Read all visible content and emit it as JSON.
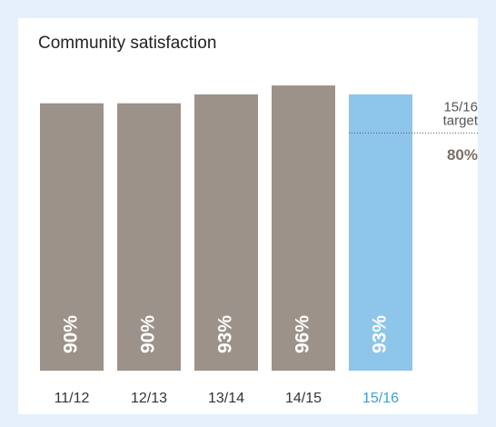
{
  "chart_data": {
    "type": "bar",
    "title": "Community satisfaction",
    "categories": [
      "11/12",
      "12/13",
      "13/14",
      "14/15",
      "15/16"
    ],
    "values": [
      90,
      90,
      93,
      96,
      93
    ],
    "value_labels": [
      "90%",
      "90%",
      "93%",
      "96%",
      "93%"
    ],
    "colors": [
      "#9c928a",
      "#9c928a",
      "#9c928a",
      "#9c928a",
      "#8ec5ea"
    ],
    "label_colors": [
      "#333333",
      "#333333",
      "#333333",
      "#333333",
      "#3b9fd8"
    ],
    "ylim": [
      0,
      100
    ],
    "target": {
      "label": [
        "15/16",
        "target"
      ],
      "value": 80,
      "value_label": "80%"
    }
  }
}
